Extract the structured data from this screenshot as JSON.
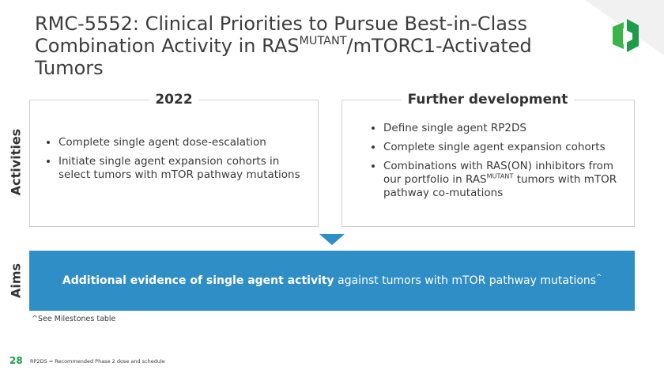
{
  "header": {
    "title": [
      "RMC-5552: Clinical Priorities to Pursue Best-in-Class",
      "Combination Activity in RAS",
      "MUTANT",
      "/mTORC1-Activated Tumors"
    ]
  },
  "rows": [
    "Activities",
    "Aims"
  ],
  "left_box": {
    "title": "2022",
    "bullets": [
      "Complete single agent dose-escalation",
      "Initiate single agent expansion cohorts in select tumors with mTOR pathway mutations"
    ]
  },
  "right_box": {
    "title": "Further development",
    "bullets": [
      "Define single agent RP2DS",
      "Complete single agent expansion cohorts",
      [
        "Combinations with RAS(ON) inhibitors from our portfolio in RAS",
        "MUTANT",
        " tumors with mTOR pathway co-mutations"
      ]
    ]
  },
  "aims": {
    "bold": "Additional evidence of single agent activity",
    "text": " against tumors with mTOR pathway mutations",
    "sup": "^"
  },
  "footnote": "^See Milestones table",
  "footer": {
    "page": "28",
    "note": "RP2DS = Recommended Phase 2 dose and schedule"
  }
}
